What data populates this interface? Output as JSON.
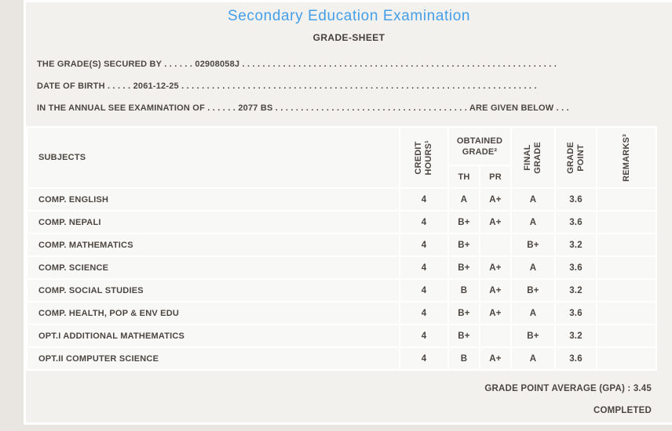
{
  "page": {
    "title": "Secondary Education Examination",
    "subtitle": "GRADE-SHEET"
  },
  "info": {
    "line1": {
      "label": "THE GRADE(S) SECURED BY",
      "dots_before": " . . . . . . ",
      "value": "02908058J",
      "dots_after": " . . . . . . . . . . . . . . . . . . . . . . . . . . . . . . . . . . . . . . . . . . . . . . . . . . . . . . . . . . . . . .",
      "suffix": ""
    },
    "line2": {
      "label": "DATE OF BIRTH",
      "dots_before": " . . . . . ",
      "value": "2061-12-25",
      "dots_after": " . . . . . . . . . . . . . . . . . . . . . . . . . . . . . . . . . . . . . . . . . . . . . . . . . . . . . . . . . . . . . . . . . . . . . .",
      "suffix": ""
    },
    "line3": {
      "label": "IN THE ANNUAL SEE EXAMINATION OF",
      "dots_before": " . . . . . . ",
      "value": "2077 BS",
      "dots_after": " . . . . . . . . . . . . . . . . . . . . . . . . . . . . . . . . . . . . . . ",
      "suffix": "ARE GIVEN BELOW . . ."
    }
  },
  "table": {
    "headers": {
      "subjects": "SUBJECTS",
      "credit_hours": "CREDIT\nHOURS¹",
      "obtained_grade": "OBTAINED\nGRADE²",
      "th": "TH",
      "pr": "PR",
      "final_grade": "FINAL\nGRADE",
      "grade_point": "GRADE\nPOINT",
      "remarks": "REMARKS³"
    },
    "rows": [
      {
        "subject": "COMP. ENGLISH",
        "credit": "4",
        "th": "A",
        "pr": "A+",
        "final": "A",
        "gp": "3.6",
        "remarks": ""
      },
      {
        "subject": "COMP. NEPALI",
        "credit": "4",
        "th": "B+",
        "pr": "A+",
        "final": "A",
        "gp": "3.6",
        "remarks": ""
      },
      {
        "subject": "COMP. MATHEMATICS",
        "credit": "4",
        "th": "B+",
        "pr": "",
        "final": "B+",
        "gp": "3.2",
        "remarks": ""
      },
      {
        "subject": "COMP. SCIENCE",
        "credit": "4",
        "th": "B+",
        "pr": "A+",
        "final": "A",
        "gp": "3.6",
        "remarks": ""
      },
      {
        "subject": "COMP. SOCIAL STUDIES",
        "credit": "4",
        "th": "B",
        "pr": "A+",
        "final": "B+",
        "gp": "3.2",
        "remarks": ""
      },
      {
        "subject": "COMP. HEALTH, POP & ENV EDU",
        "credit": "4",
        "th": "B+",
        "pr": "A+",
        "final": "A",
        "gp": "3.6",
        "remarks": ""
      },
      {
        "subject": "OPT.I ADDITIONAL MATHEMATICS",
        "credit": "4",
        "th": "B+",
        "pr": "",
        "final": "B+",
        "gp": "3.2",
        "remarks": ""
      },
      {
        "subject": "OPT.II COMPUTER SCIENCE",
        "credit": "4",
        "th": "B",
        "pr": "A+",
        "final": "A",
        "gp": "3.6",
        "remarks": ""
      }
    ]
  },
  "footer": {
    "gpa_label": "GRADE POINT AVERAGE (GPA) : ",
    "gpa_value": "3.45",
    "status": "COMPLETED"
  },
  "colors": {
    "title_blue": "#449fe8",
    "text": "#4c4641",
    "panel_bg": "#f3f1ee",
    "cell_bg": "#f8f8f7",
    "outer_bg": "#e9e6e2"
  }
}
